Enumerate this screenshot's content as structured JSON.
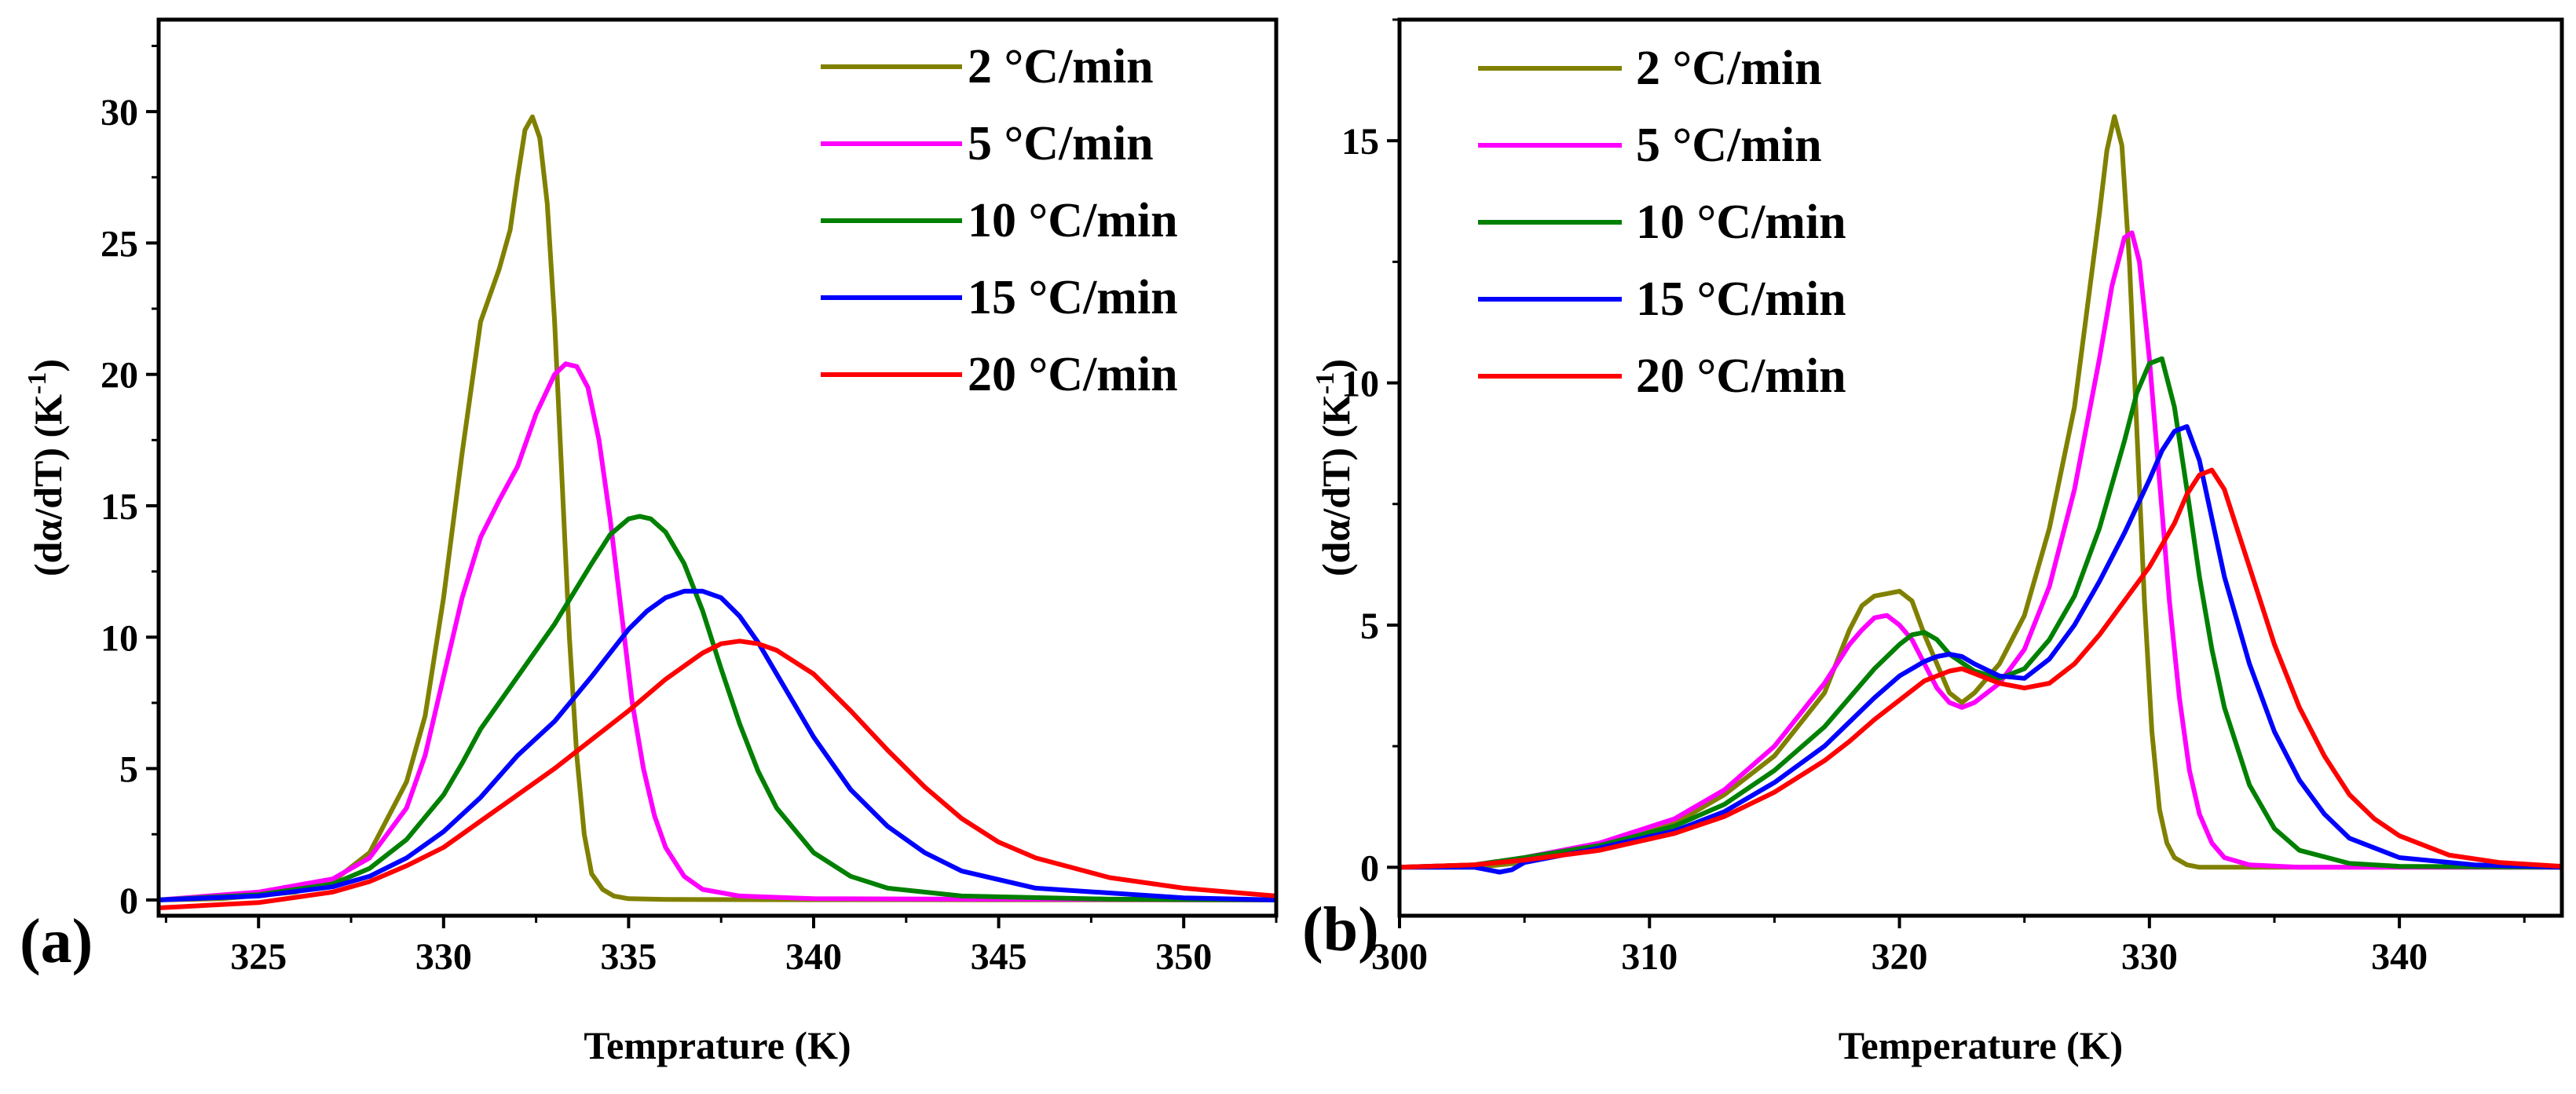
{
  "chart_data": [
    {
      "type": "line",
      "panel_label": "(a)",
      "xlabel": "Temprature (K)",
      "ylabel": "(dα/dT) (K⁻¹)",
      "ylabel_parts": {
        "main": "(dα/dT) (K",
        "sup": "-1",
        "end": ")"
      },
      "xlim": [
        322.3,
        352.5
      ],
      "ylim": [
        -0.6,
        33.5
      ],
      "xticks": [
        325,
        330,
        335,
        340,
        345,
        350
      ],
      "yticks": [
        0,
        5,
        10,
        15,
        20,
        25,
        30
      ],
      "legend_position": "top-right",
      "series": [
        {
          "name": "2 °C/min",
          "color": "#808000",
          "x": [
            322.3,
            324,
            326,
            327,
            328,
            329,
            329.5,
            330,
            330.5,
            330.8,
            331,
            331.5,
            331.8,
            332,
            332.2,
            332.4,
            332.6,
            332.8,
            333,
            333.2,
            333.4,
            333.6,
            333.8,
            334,
            334.3,
            334.6,
            335,
            336,
            340,
            352.5
          ],
          "y": [
            0,
            0.05,
            0.3,
            0.7,
            1.8,
            4.5,
            7,
            11.5,
            17,
            20,
            22,
            24,
            25.5,
            27.5,
            29.3,
            29.8,
            29,
            26.5,
            22,
            16,
            10,
            5.5,
            2.5,
            1.0,
            0.4,
            0.15,
            0.05,
            0.02,
            0.01,
            0
          ]
        },
        {
          "name": "5 °C/min",
          "color": "#ff00ff",
          "x": [
            322.3,
            325,
            327,
            328,
            329,
            329.5,
            330,
            330.5,
            331,
            331.5,
            332,
            332.5,
            333,
            333.3,
            333.6,
            333.9,
            334.2,
            334.5,
            334.8,
            335.1,
            335.4,
            335.7,
            336,
            336.5,
            337,
            338,
            340,
            352.5
          ],
          "y": [
            0,
            0.3,
            0.8,
            1.6,
            3.5,
            5.5,
            8.5,
            11.5,
            13.8,
            15.2,
            16.5,
            18.5,
            20,
            20.4,
            20.3,
            19.5,
            17.5,
            14.5,
            11,
            7.5,
            5,
            3.2,
            2,
            0.9,
            0.4,
            0.15,
            0.05,
            0
          ]
        },
        {
          "name": "10 °C/min",
          "color": "#008000",
          "x": [
            322.3,
            325,
            327,
            328,
            329,
            330,
            330.5,
            331,
            332,
            333,
            334,
            334.5,
            335,
            335.3,
            335.6,
            336,
            336.5,
            337,
            337.5,
            338,
            338.5,
            339,
            340,
            341,
            342,
            344,
            348,
            352.5
          ],
          "y": [
            0,
            0.2,
            0.6,
            1.2,
            2.3,
            4,
            5.2,
            6.5,
            8.5,
            10.5,
            12.8,
            13.9,
            14.5,
            14.6,
            14.5,
            14,
            12.8,
            11,
            8.8,
            6.7,
            4.9,
            3.5,
            1.8,
            0.9,
            0.45,
            0.15,
            0.03,
            0
          ]
        },
        {
          "name": "15 °C/min",
          "color": "#0000ff",
          "x": [
            322.3,
            325,
            327,
            328,
            329,
            330,
            331,
            332,
            333,
            334,
            335,
            335.5,
            336,
            336.5,
            337,
            337.5,
            338,
            338.5,
            339,
            339.5,
            340,
            341,
            342,
            343,
            344,
            346,
            350,
            352.5
          ],
          "y": [
            0,
            0.15,
            0.5,
            0.9,
            1.6,
            2.6,
            3.9,
            5.5,
            6.8,
            8.5,
            10.3,
            11,
            11.5,
            11.75,
            11.75,
            11.5,
            10.8,
            9.8,
            8.6,
            7.4,
            6.2,
            4.2,
            2.8,
            1.8,
            1.1,
            0.45,
            0.08,
            0
          ]
        },
        {
          "name": "20 °C/min",
          "color": "#ff0000",
          "x": [
            322.3,
            325,
            327,
            328,
            329,
            330,
            331,
            332,
            333,
            334,
            335,
            336,
            337,
            337.5,
            338,
            338.5,
            339,
            340,
            341,
            342,
            343,
            344,
            345,
            346,
            348,
            350,
            352.5
          ],
          "y": [
            -0.3,
            -0.1,
            0.3,
            0.7,
            1.3,
            2,
            3,
            4,
            5,
            6.1,
            7.2,
            8.4,
            9.4,
            9.75,
            9.85,
            9.75,
            9.5,
            8.6,
            7.2,
            5.7,
            4.3,
            3.1,
            2.2,
            1.6,
            0.85,
            0.45,
            0.15
          ]
        }
      ]
    },
    {
      "type": "line",
      "panel_label": "(b)",
      "xlabel": "Temperature (K)",
      "ylabel": "(dα/dT) (K⁻¹)",
      "ylabel_parts": {
        "main": "(dα/dT) (K",
        "sup": "-1",
        "end": ")"
      },
      "xlim": [
        300,
        346.5
      ],
      "ylim": [
        -1.0,
        17.5
      ],
      "xticks": [
        300,
        310,
        320,
        330,
        340
      ],
      "yticks": [
        0,
        5,
        10,
        15
      ],
      "legend_position": "top-left",
      "series": [
        {
          "name": "2 °C/min",
          "color": "#808000",
          "x": [
            300,
            303,
            305,
            308,
            311,
            313,
            315,
            317,
            318,
            318.5,
            319,
            319.5,
            320,
            320.5,
            321,
            321.5,
            322,
            322.5,
            323,
            324,
            325,
            326,
            327,
            327.5,
            328,
            328.3,
            328.6,
            328.9,
            329.2,
            329.5,
            329.8,
            330.1,
            330.4,
            330.7,
            331,
            331.5,
            332,
            334,
            340,
            346.5
          ],
          "y": [
            0,
            0,
            0.1,
            0.4,
            0.9,
            1.5,
            2.3,
            3.6,
            4.9,
            5.4,
            5.6,
            5.65,
            5.7,
            5.5,
            4.8,
            4.2,
            3.6,
            3.4,
            3.6,
            4.2,
            5.2,
            7,
            9.5,
            11.5,
            13.5,
            14.8,
            15.5,
            14.9,
            12.5,
            9,
            5.5,
            2.8,
            1.2,
            0.5,
            0.2,
            0.05,
            0,
            0,
            0,
            0
          ]
        },
        {
          "name": "5 °C/min",
          "color": "#ff00ff",
          "x": [
            300,
            303,
            305,
            308,
            311,
            313,
            315,
            317,
            318,
            318.5,
            319,
            319.5,
            320,
            320.5,
            321,
            321.5,
            322,
            322.5,
            323,
            324,
            325,
            326,
            327,
            328,
            328.5,
            329,
            329.3,
            329.6,
            330,
            330.4,
            330.8,
            331.2,
            331.6,
            332,
            332.5,
            333,
            334,
            336,
            340,
            346.5
          ],
          "y": [
            0,
            0.05,
            0.2,
            0.5,
            1,
            1.6,
            2.5,
            3.8,
            4.6,
            4.9,
            5.15,
            5.2,
            5,
            4.7,
            4.2,
            3.7,
            3.4,
            3.3,
            3.4,
            3.8,
            4.5,
            5.8,
            7.8,
            10.5,
            12,
            13,
            13.1,
            12.5,
            10.5,
            8,
            5.5,
            3.5,
            2,
            1.1,
            0.5,
            0.2,
            0.05,
            0,
            0,
            0
          ]
        },
        {
          "name": "10 °C/min",
          "color": "#008000",
          "x": [
            300,
            303,
            305,
            308,
            311,
            313,
            315,
            317,
            318,
            319,
            320,
            320.5,
            321,
            321.5,
            322,
            323,
            324,
            325,
            326,
            327,
            328,
            329,
            329.5,
            330,
            330.5,
            331,
            331.5,
            332,
            332.5,
            333,
            334,
            335,
            336,
            338,
            340,
            346.5
          ],
          "y": [
            0,
            0.05,
            0.2,
            0.45,
            0.85,
            1.3,
            2,
            2.9,
            3.5,
            4.1,
            4.6,
            4.8,
            4.85,
            4.7,
            4.4,
            4.05,
            3.9,
            4.1,
            4.7,
            5.6,
            7,
            8.8,
            9.8,
            10.4,
            10.5,
            9.5,
            7.8,
            6,
            4.5,
            3.3,
            1.7,
            0.8,
            0.35,
            0.08,
            0.02,
            0
          ]
        },
        {
          "name": "15 °C/min",
          "color": "#0000ff",
          "x": [
            300,
            303,
            304,
            304.5,
            305,
            308,
            311,
            313,
            315,
            317,
            318,
            319,
            320,
            321,
            321.5,
            322,
            322.5,
            323,
            324,
            325,
            326,
            327,
            328,
            329,
            330,
            330.5,
            331,
            331.5,
            332,
            332.5,
            333,
            334,
            335,
            336,
            337,
            338,
            340,
            343,
            346.5
          ],
          "y": [
            0,
            0,
            -0.1,
            -0.05,
            0.1,
            0.4,
            0.75,
            1.15,
            1.75,
            2.5,
            3,
            3.5,
            3.95,
            4.25,
            4.35,
            4.4,
            4.35,
            4.2,
            3.95,
            3.9,
            4.3,
            5,
            5.9,
            6.9,
            8,
            8.6,
            9,
            9.1,
            8.4,
            7.2,
            6,
            4.2,
            2.8,
            1.8,
            1.1,
            0.6,
            0.2,
            0.05,
            0
          ]
        },
        {
          "name": "20 °C/min",
          "color": "#ff0000",
          "x": [
            300,
            303,
            305,
            308,
            311,
            313,
            315,
            317,
            318,
            319,
            320,
            321,
            322,
            322.5,
            323,
            324,
            325,
            326,
            327,
            328,
            329,
            330,
            331,
            331.5,
            332,
            332.5,
            333,
            333.5,
            334,
            335,
            336,
            337,
            338,
            339,
            340,
            342,
            344,
            346.5
          ],
          "y": [
            0,
            0.05,
            0.15,
            0.35,
            0.7,
            1.05,
            1.55,
            2.2,
            2.6,
            3.05,
            3.45,
            3.85,
            4.05,
            4.1,
            4,
            3.8,
            3.7,
            3.8,
            4.2,
            4.8,
            5.5,
            6.2,
            7.1,
            7.7,
            8.1,
            8.2,
            7.8,
            7,
            6.2,
            4.6,
            3.3,
            2.3,
            1.5,
            1,
            0.65,
            0.25,
            0.1,
            0.02
          ]
        }
      ]
    }
  ]
}
